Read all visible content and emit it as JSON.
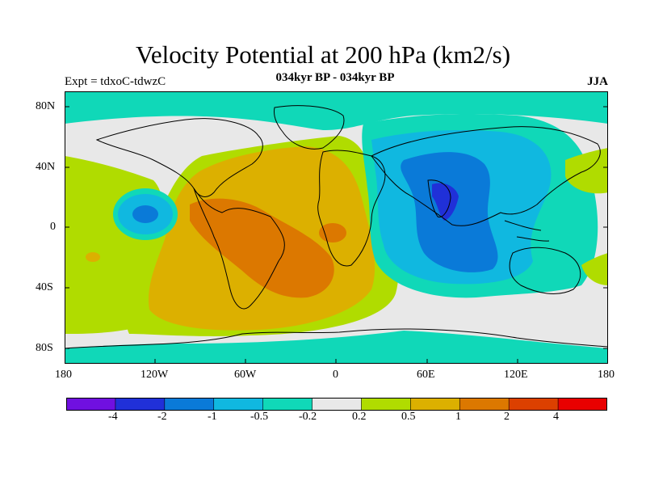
{
  "title": "Velocity Potential at 200 hPa (km2/s)",
  "subtitle": "034kyr BP - 034kyr BP",
  "experiment": "Expt = tdxoC-tdwzC",
  "season": "JJA",
  "axes": {
    "lat_ticks": [
      "80N",
      "40N",
      "0",
      "40S",
      "80S"
    ],
    "lon_ticks": [
      "180",
      "120W",
      "60W",
      "0",
      "60E",
      "120E",
      "180"
    ]
  },
  "colorbar": {
    "colors": [
      "#7010e0",
      "#2030d8",
      "#0a7ad8",
      "#10b8e0",
      "#10d8b8",
      "#e8e8e8",
      "#b0dc00",
      "#dcb000",
      "#dc7800",
      "#dc4000",
      "#e80000"
    ],
    "labels": [
      "-4",
      "-2",
      "-1",
      "-0.5",
      "-0.2",
      "0.2",
      "0.5",
      "1",
      "2",
      "4"
    ]
  }
}
